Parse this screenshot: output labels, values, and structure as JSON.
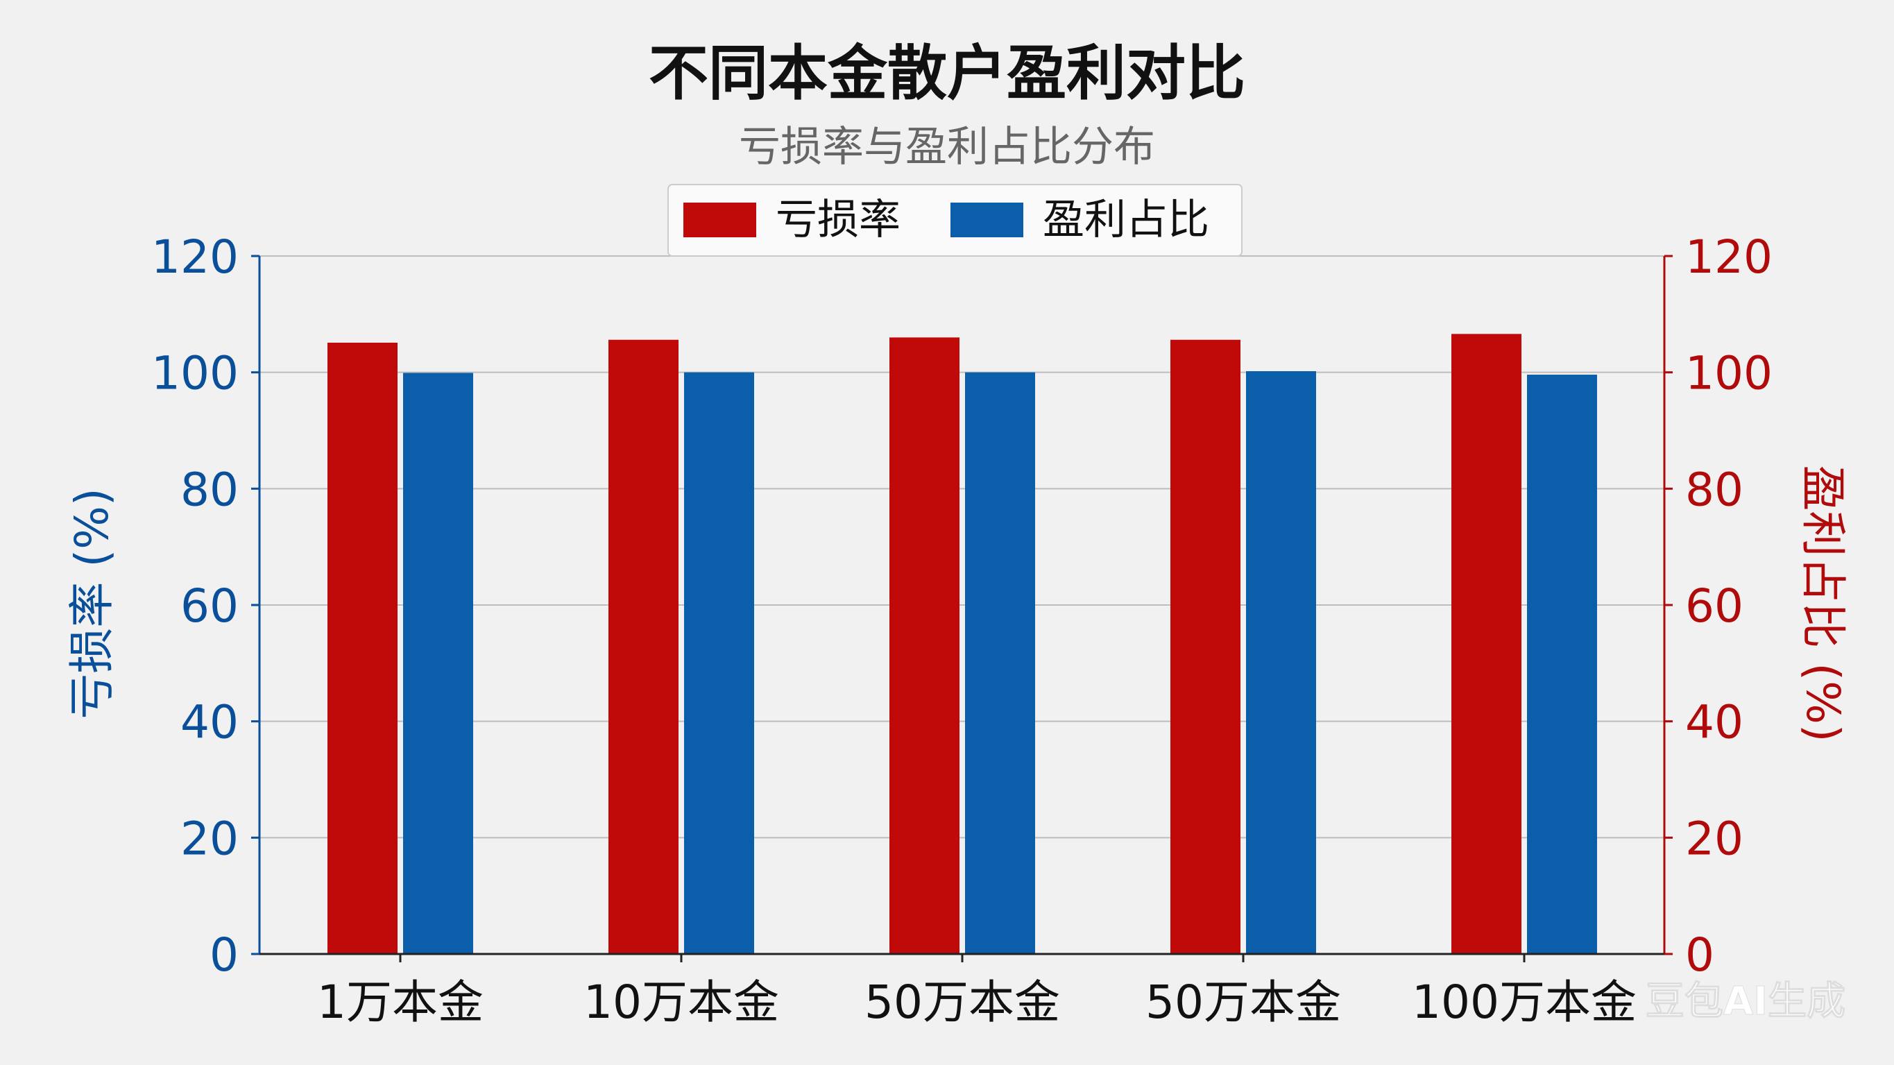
{
  "chart_data": {
    "type": "bar",
    "title": "不同本金散户盈利对比",
    "subtitle": "亏损率与盈利占比分布",
    "categories": [
      "1万本金",
      "10万本金",
      "50万本金",
      "50万本金",
      "100万本金"
    ],
    "series": [
      {
        "name": "亏损率",
        "color": "#c00a0a",
        "values": [
          105.1,
          105.6,
          106.0,
          105.6,
          106.6
        ]
      },
      {
        "name": "盈利占比",
        "color": "#0a5eaa",
        "values": [
          99.9,
          100.0,
          100.0,
          100.2,
          99.6
        ]
      }
    ],
    "ylabel_left": "亏损率 (%)",
    "ylabel_right": "盈利占比 (%)",
    "ylim": [
      0,
      120
    ],
    "yticks": [
      0,
      20,
      40,
      60,
      80,
      100,
      120
    ],
    "left_axis_color": "#0a4f9a",
    "right_axis_color": "#b00a0a",
    "grid": true,
    "legend_position": "top-center"
  },
  "watermark": "豆包AI生成"
}
